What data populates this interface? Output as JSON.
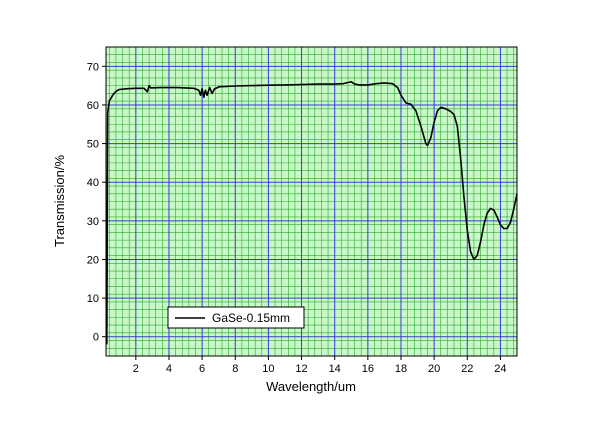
{
  "chart_data": {
    "type": "line",
    "title": "",
    "xlabel": "Wavelength/um",
    "ylabel": "Transmission/%",
    "xlim": [
      0.2,
      25
    ],
    "ylim": [
      -5,
      75
    ],
    "x_ticks": [
      2,
      4,
      6,
      8,
      10,
      12,
      14,
      16,
      18,
      20,
      22,
      24
    ],
    "y_ticks": [
      0,
      10,
      20,
      30,
      40,
      50,
      60,
      70
    ],
    "grid": true,
    "legend": "bottom-left",
    "colors": {
      "background": "#c8f7c8",
      "major_grid": "#3a3ad8",
      "minor_grid": "#2ea82e",
      "line": "#000000"
    },
    "series": [
      {
        "name": "GaSe-0.15mm",
        "points": [
          [
            0.25,
            -2
          ],
          [
            0.3,
            58
          ],
          [
            0.4,
            61
          ],
          [
            0.6,
            62.5
          ],
          [
            0.8,
            63.5
          ],
          [
            1.0,
            64.0
          ],
          [
            1.5,
            64.2
          ],
          [
            2.0,
            64.3
          ],
          [
            2.5,
            64.3
          ],
          [
            2.7,
            63.4
          ],
          [
            2.8,
            65.0
          ],
          [
            2.9,
            64.4
          ],
          [
            3.5,
            64.5
          ],
          [
            4.0,
            64.5
          ],
          [
            4.5,
            64.5
          ],
          [
            5.0,
            64.4
          ],
          [
            5.5,
            64.3
          ],
          [
            5.8,
            63.8
          ],
          [
            5.9,
            62.5
          ],
          [
            6.0,
            64.2
          ],
          [
            6.1,
            62.0
          ],
          [
            6.2,
            63.8
          ],
          [
            6.3,
            62.5
          ],
          [
            6.45,
            64.5
          ],
          [
            6.6,
            63.0
          ],
          [
            6.75,
            64.2
          ],
          [
            6.9,
            64.4
          ],
          [
            7.0,
            64.7
          ],
          [
            8.0,
            64.9
          ],
          [
            9.0,
            65.0
          ],
          [
            10.0,
            65.1
          ],
          [
            11.0,
            65.2
          ],
          [
            12.0,
            65.3
          ],
          [
            13.0,
            65.4
          ],
          [
            14.0,
            65.4
          ],
          [
            14.5,
            65.5
          ],
          [
            14.8,
            65.8
          ],
          [
            15.0,
            66.0
          ],
          [
            15.2,
            65.4
          ],
          [
            15.5,
            65.2
          ],
          [
            16.0,
            65.2
          ],
          [
            16.5,
            65.5
          ],
          [
            17.0,
            65.7
          ],
          [
            17.5,
            65.5
          ],
          [
            17.8,
            64.5
          ],
          [
            18.0,
            62.5
          ],
          [
            18.3,
            60.5
          ],
          [
            18.6,
            60.2
          ],
          [
            18.9,
            58.5
          ],
          [
            19.2,
            54.5
          ],
          [
            19.5,
            50.0
          ],
          [
            19.6,
            49.5
          ],
          [
            19.8,
            51.5
          ],
          [
            20.0,
            55.5
          ],
          [
            20.2,
            58.5
          ],
          [
            20.4,
            59.4
          ],
          [
            20.7,
            59.0
          ],
          [
            21.0,
            58.3
          ],
          [
            21.2,
            57.5
          ],
          [
            21.4,
            54.5
          ],
          [
            21.6,
            46.0
          ],
          [
            21.8,
            36.0
          ],
          [
            22.0,
            27.5
          ],
          [
            22.2,
            22.0
          ],
          [
            22.4,
            20.0
          ],
          [
            22.6,
            21.0
          ],
          [
            22.8,
            24.5
          ],
          [
            23.0,
            29.0
          ],
          [
            23.2,
            32.0
          ],
          [
            23.4,
            33.2
          ],
          [
            23.6,
            32.8
          ],
          [
            23.8,
            31.0
          ],
          [
            24.0,
            29.0
          ],
          [
            24.2,
            28.0
          ],
          [
            24.4,
            28.0
          ],
          [
            24.6,
            29.5
          ],
          [
            24.8,
            33.0
          ],
          [
            25.0,
            37.0
          ]
        ]
      }
    ]
  }
}
